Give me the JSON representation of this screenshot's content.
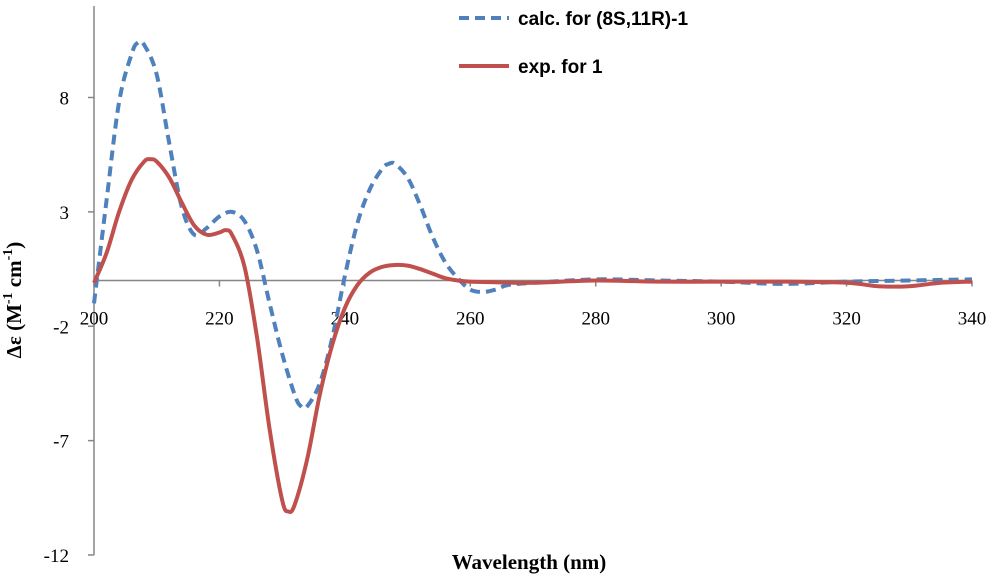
{
  "chart_data": {
    "type": "line",
    "title": "",
    "xlabel": "Wavelength (nm)",
    "ylabel": "Δε (M-1 cm-1)",
    "ylabel_parts": {
      "pre": "Δε (M",
      "sup1": "-1",
      "mid": " cm",
      "sup2": "-1",
      "post": ")"
    },
    "xlim": [
      200,
      340
    ],
    "ylim": [
      -12,
      12
    ],
    "x_ticks": [
      {
        "value": 200,
        "label": "200"
      },
      {
        "value": 220,
        "label": "220"
      },
      {
        "value": 240,
        "label": "240"
      },
      {
        "value": 260,
        "label": "260"
      },
      {
        "value": 280,
        "label": "280"
      },
      {
        "value": 300,
        "label": "300"
      },
      {
        "value": 320,
        "label": "320"
      },
      {
        "value": 340,
        "label": "340"
      }
    ],
    "y_ticks": [
      {
        "value": 8,
        "label": "8"
      },
      {
        "value": 3,
        "label": "3"
      },
      {
        "value": -2,
        "label": "-2"
      },
      {
        "value": -7,
        "label": "-7"
      },
      {
        "value": -12,
        "label": "-12"
      }
    ],
    "grid": false,
    "legend_position": "top-right",
    "series": [
      {
        "name": "calc. for (8S,11R)-1",
        "color": "#4F81BD",
        "dash": true,
        "points": [
          [
            200,
            -1.0
          ],
          [
            202,
            3.5
          ],
          [
            204,
            7.8
          ],
          [
            206,
            9.9
          ],
          [
            207,
            10.4
          ],
          [
            208,
            10.3
          ],
          [
            210,
            9.0
          ],
          [
            212,
            6.0
          ],
          [
            214,
            3.2
          ],
          [
            216,
            2.0
          ],
          [
            218,
            2.3
          ],
          [
            220,
            2.8
          ],
          [
            222,
            3.0
          ],
          [
            224,
            2.6
          ],
          [
            226,
            1.3
          ],
          [
            228,
            -1.0
          ],
          [
            230,
            -3.2
          ],
          [
            232,
            -5.0
          ],
          [
            233,
            -5.5
          ],
          [
            234,
            -5.5
          ],
          [
            236,
            -4.5
          ],
          [
            238,
            -2.5
          ],
          [
            240,
            0.2
          ],
          [
            242,
            2.5
          ],
          [
            244,
            4.0
          ],
          [
            246,
            4.9
          ],
          [
            247,
            5.1
          ],
          [
            248,
            5.1
          ],
          [
            250,
            4.5
          ],
          [
            252,
            3.3
          ],
          [
            254,
            1.9
          ],
          [
            256,
            0.8
          ],
          [
            258,
            0.1
          ],
          [
            260,
            -0.4
          ],
          [
            262,
            -0.5
          ],
          [
            264,
            -0.4
          ],
          [
            266,
            -0.2
          ],
          [
            270,
            -0.1
          ],
          [
            280,
            0.05
          ],
          [
            290,
            0.0
          ],
          [
            300,
            -0.05
          ],
          [
            310,
            -0.15
          ],
          [
            320,
            -0.05
          ],
          [
            330,
            0.0
          ],
          [
            340,
            0.05
          ]
        ]
      },
      {
        "name": "exp. for 1",
        "color": "#C0504D",
        "dash": false,
        "points": [
          [
            200,
            -0.1
          ],
          [
            202,
            1.2
          ],
          [
            204,
            3.0
          ],
          [
            206,
            4.4
          ],
          [
            208,
            5.2
          ],
          [
            209,
            5.3
          ],
          [
            210,
            5.2
          ],
          [
            212,
            4.5
          ],
          [
            214,
            3.4
          ],
          [
            216,
            2.4
          ],
          [
            218,
            2.0
          ],
          [
            220,
            2.1
          ],
          [
            221,
            2.2
          ],
          [
            222,
            2.0
          ],
          [
            224,
            0.6
          ],
          [
            226,
            -2.5
          ],
          [
            228,
            -6.5
          ],
          [
            230,
            -9.6
          ],
          [
            231,
            -10.1
          ],
          [
            232,
            -9.8
          ],
          [
            234,
            -7.8
          ],
          [
            236,
            -5.0
          ],
          [
            238,
            -2.8
          ],
          [
            240,
            -1.2
          ],
          [
            242,
            -0.2
          ],
          [
            244,
            0.35
          ],
          [
            246,
            0.6
          ],
          [
            248,
            0.68
          ],
          [
            250,
            0.65
          ],
          [
            252,
            0.5
          ],
          [
            254,
            0.3
          ],
          [
            256,
            0.1
          ],
          [
            258,
            0.0
          ],
          [
            260,
            -0.05
          ],
          [
            265,
            -0.08
          ],
          [
            270,
            -0.1
          ],
          [
            280,
            0.0
          ],
          [
            290,
            -0.05
          ],
          [
            300,
            -0.05
          ],
          [
            310,
            -0.05
          ],
          [
            320,
            -0.1
          ],
          [
            325,
            -0.25
          ],
          [
            330,
            -0.25
          ],
          [
            335,
            -0.1
          ],
          [
            340,
            -0.05
          ]
        ]
      }
    ]
  }
}
